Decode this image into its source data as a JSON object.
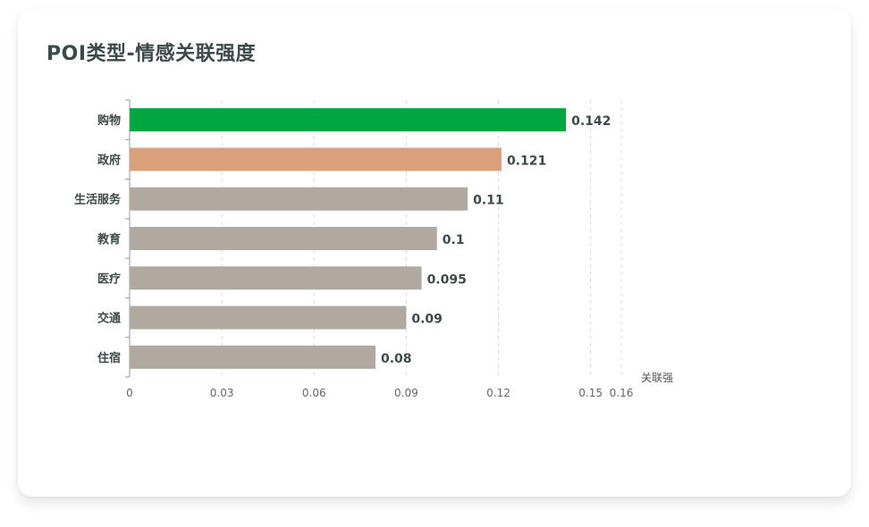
{
  "card": {
    "title": "POI类型-情感关联强度"
  },
  "chart_data": {
    "type": "bar",
    "orientation": "horizontal",
    "categories": [
      "购物",
      "政府",
      "生活服务",
      "教育",
      "医疗",
      "交通",
      "住宿"
    ],
    "values": [
      0.142,
      0.121,
      0.11,
      0.1,
      0.095,
      0.09,
      0.08
    ],
    "value_labels": [
      "0.142",
      "0.121",
      "0.11",
      "0.1",
      "0.095",
      "0.09",
      "0.08"
    ],
    "colors": [
      "#00a63f",
      "#d9a07c",
      "#b0a99f",
      "#b0a99f",
      "#b0a99f",
      "#b0a99f",
      "#b0a99f"
    ],
    "x_ticks": [
      0,
      0.03,
      0.06,
      0.09,
      0.12,
      0.15,
      0.16
    ],
    "x_tick_labels": [
      "0",
      "0.03",
      "0.06",
      "0.09",
      "0.12",
      "0.15",
      "0.16"
    ],
    "xlim": [
      0,
      0.16
    ],
    "xlabel": "关联强",
    "ylabel": "",
    "grid": "vertical-dashed",
    "legend": "none"
  }
}
